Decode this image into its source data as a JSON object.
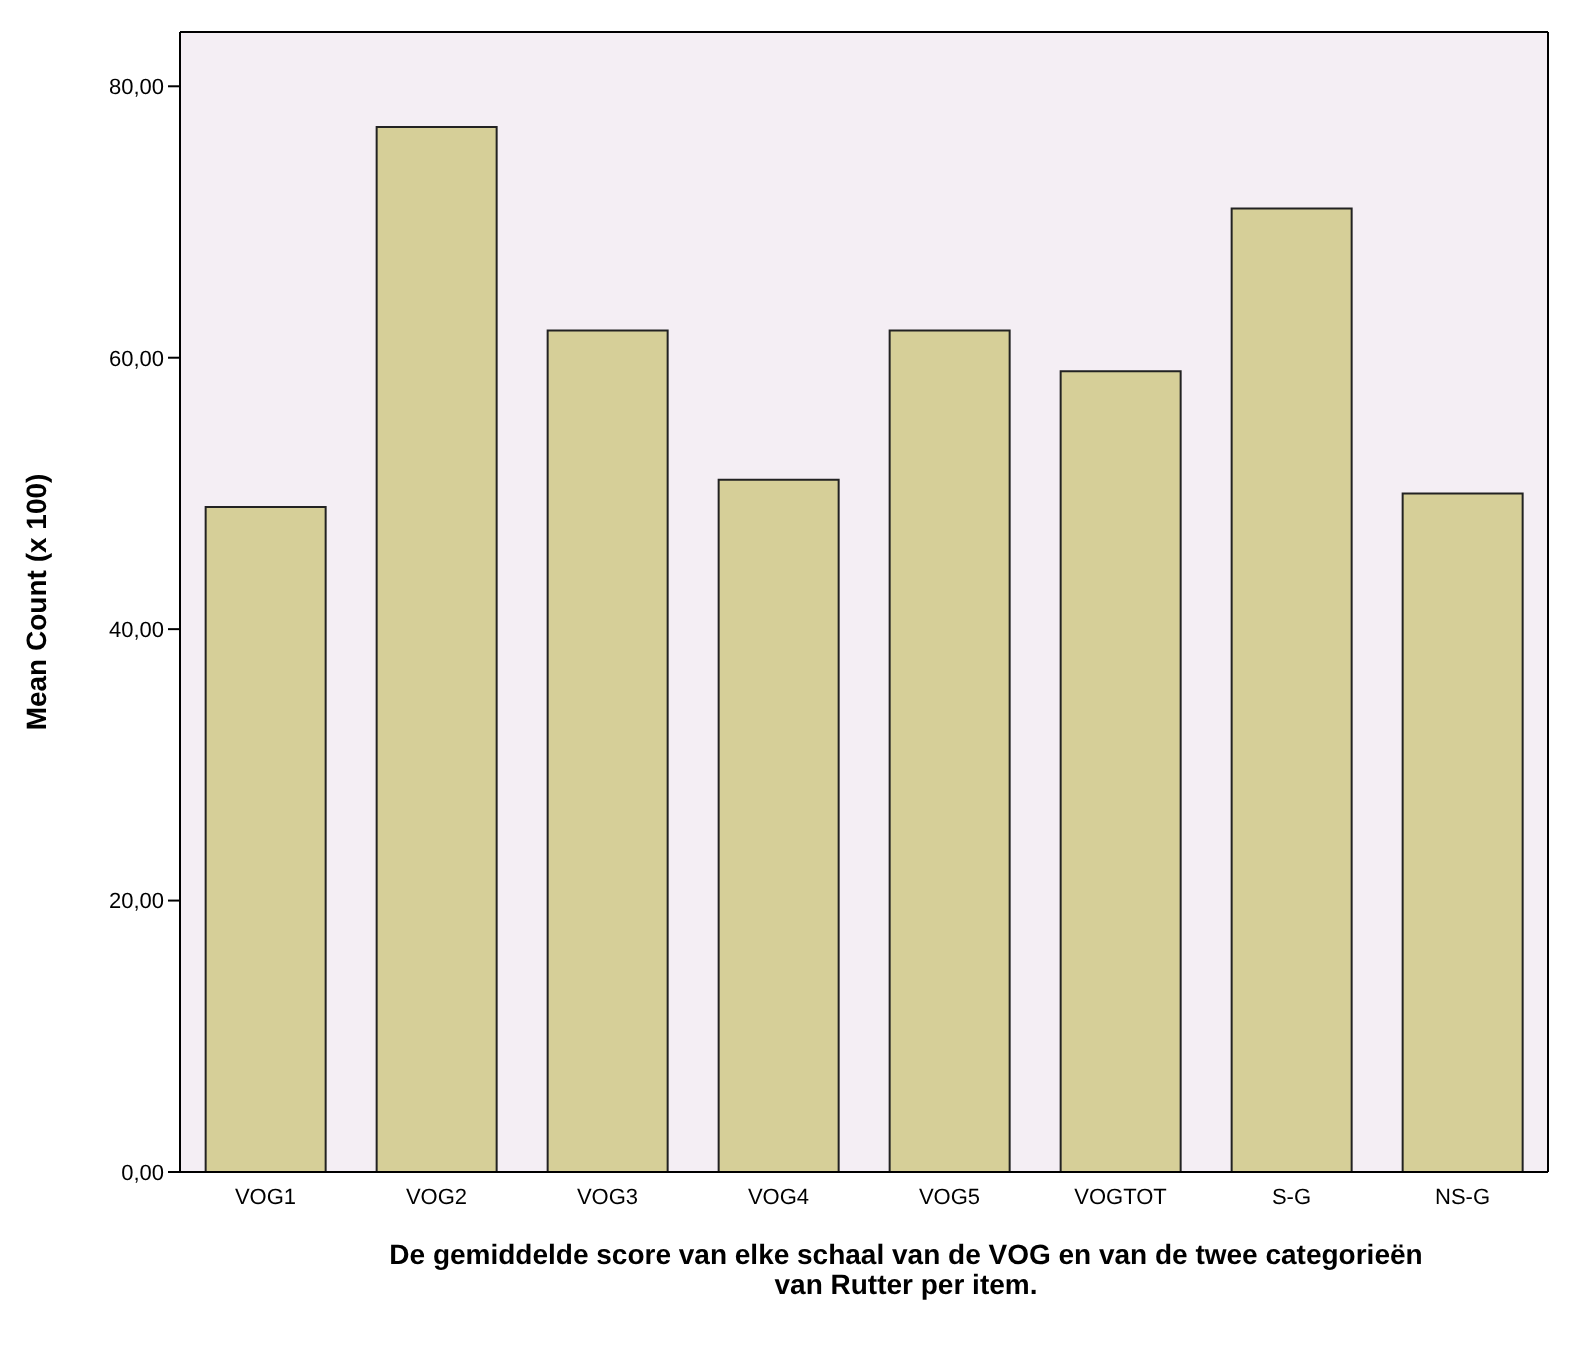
{
  "chart_data": {
    "type": "bar",
    "xlabel": "De gemiddelde score van elke schaal van de VOG en van de twee categorieën van Rutter per item.",
    "ylabel": "Mean Count (x 100)",
    "categories": [
      "VOG1",
      "VOG2",
      "VOG3",
      "VOG4",
      "VOG5",
      "VOGTOT",
      "S-G",
      "NS-G"
    ],
    "values": [
      49,
      77,
      62,
      51,
      62,
      59,
      71,
      50
    ],
    "color": "#d6cf98",
    "ylim": [
      0,
      84
    ],
    "yticks": [
      {
        "value": 0,
        "label": "0,00"
      },
      {
        "value": 20,
        "label": "20,00"
      },
      {
        "value": 40,
        "label": "40,00"
      },
      {
        "value": 60,
        "label": "60,00"
      },
      {
        "value": 80,
        "label": "80,00"
      }
    ],
    "grid": false
  }
}
